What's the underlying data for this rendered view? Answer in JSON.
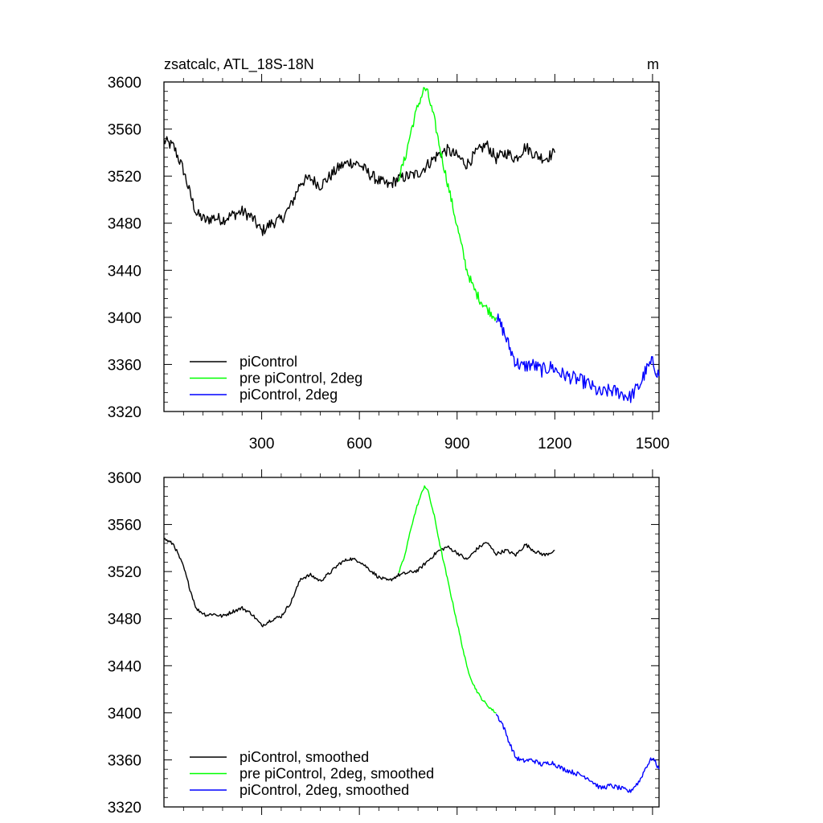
{
  "chart_data": [
    {
      "type": "line",
      "title": "zsatcalc, ATL_18S-18N",
      "units": "m",
      "xlim": [
        0,
        1520
      ],
      "ylim": [
        3320,
        3600
      ],
      "xticks": [
        300,
        600,
        900,
        1200,
        1500
      ],
      "x_tick_labels": [
        "300",
        "600",
        "900",
        "1200",
        "1500"
      ],
      "yticks": [
        3320,
        3360,
        3400,
        3440,
        3480,
        3520,
        3560,
        3600
      ],
      "y_tick_labels": [
        "3320",
        "3360",
        "3400",
        "3440",
        "3480",
        "3520",
        "3560",
        "3600"
      ],
      "legend_position": "bottom-left",
      "series": [
        {
          "name": "piControl",
          "color": "#000000",
          "x": [
            0,
            30,
            60,
            80,
            100,
            130,
            150,
            180,
            210,
            240,
            270,
            300,
            330,
            360,
            390,
            420,
            450,
            480,
            510,
            540,
            570,
            600,
            630,
            660,
            690,
            720,
            750,
            780,
            810,
            840,
            870,
            900,
            930,
            960,
            990,
            1020,
            1050,
            1080,
            1110,
            1140,
            1170,
            1200
          ],
          "y": [
            3550,
            3545,
            3525,
            3505,
            3488,
            3482,
            3485,
            3483,
            3487,
            3490,
            3485,
            3473,
            3480,
            3483,
            3495,
            3515,
            3518,
            3512,
            3520,
            3528,
            3532,
            3530,
            3522,
            3516,
            3512,
            3518,
            3520,
            3522,
            3530,
            3538,
            3542,
            3537,
            3530,
            3540,
            3547,
            3535,
            3540,
            3535,
            3545,
            3538,
            3535,
            3540
          ],
          "noise": 5
        },
        {
          "name": "pre piControl, 2deg",
          "color": "#00ff00",
          "x": [
            720,
            740,
            760,
            780,
            800,
            810,
            830,
            850,
            870,
            890,
            910,
            930,
            950,
            970,
            990,
            1010,
            1020
          ],
          "y": [
            3518,
            3535,
            3560,
            3580,
            3595,
            3590,
            3568,
            3540,
            3515,
            3490,
            3465,
            3440,
            3425,
            3415,
            3408,
            3402,
            3400
          ],
          "noise": 4
        },
        {
          "name": "piControl, 2deg",
          "color": "#0000ff",
          "x": [
            1020,
            1040,
            1060,
            1080,
            1100,
            1130,
            1160,
            1190,
            1220,
            1260,
            1300,
            1340,
            1370,
            1400,
            1430,
            1460,
            1480,
            1500,
            1520
          ],
          "y": [
            3400,
            3390,
            3375,
            3362,
            3358,
            3360,
            3355,
            3358,
            3352,
            3348,
            3344,
            3335,
            3338,
            3336,
            3332,
            3342,
            3355,
            3362,
            3350
          ],
          "noise": 6
        }
      ]
    },
    {
      "type": "line",
      "title": "",
      "xlim": [
        0,
        1520
      ],
      "ylim": [
        3320,
        3600
      ],
      "xticks": [
        300,
        600,
        900,
        1200,
        1500
      ],
      "yticks": [
        3320,
        3360,
        3400,
        3440,
        3480,
        3520,
        3560,
        3600
      ],
      "y_tick_labels": [
        "3320",
        "3360",
        "3400",
        "3440",
        "3480",
        "3520",
        "3560",
        "3600"
      ],
      "legend_position": "bottom-left",
      "series": [
        {
          "name": "piControl, smoothed",
          "color": "#000000",
          "x": [
            0,
            30,
            60,
            80,
            100,
            130,
            150,
            180,
            210,
            240,
            270,
            300,
            330,
            360,
            390,
            420,
            450,
            480,
            510,
            540,
            570,
            600,
            630,
            660,
            690,
            720,
            750,
            780,
            810,
            840,
            870,
            900,
            930,
            960,
            990,
            1020,
            1050,
            1080,
            1110,
            1140,
            1170,
            1200
          ],
          "y": [
            3548,
            3543,
            3524,
            3505,
            3488,
            3483,
            3484,
            3482,
            3486,
            3489,
            3484,
            3474,
            3479,
            3482,
            3494,
            3514,
            3517,
            3512,
            3519,
            3527,
            3531,
            3529,
            3522,
            3515,
            3512,
            3517,
            3519,
            3521,
            3529,
            3537,
            3541,
            3536,
            3530,
            3539,
            3545,
            3535,
            3538,
            3534,
            3543,
            3537,
            3534,
            3538
          ],
          "noise": 1.5
        },
        {
          "name": "pre piControl, 2deg, smoothed",
          "color": "#00ff00",
          "x": [
            720,
            740,
            760,
            780,
            800,
            810,
            830,
            850,
            870,
            890,
            910,
            930,
            950,
            970,
            990,
            1010,
            1020
          ],
          "y": [
            3518,
            3534,
            3559,
            3578,
            3593,
            3589,
            3567,
            3539,
            3514,
            3489,
            3464,
            3439,
            3424,
            3414,
            3407,
            3402,
            3400
          ],
          "noise": 1.2
        },
        {
          "name": "piControl, 2deg, smoothed",
          "color": "#0000ff",
          "x": [
            1020,
            1040,
            1060,
            1080,
            1100,
            1130,
            1160,
            1190,
            1220,
            1260,
            1300,
            1340,
            1370,
            1400,
            1430,
            1460,
            1480,
            1500,
            1520
          ],
          "y": [
            3399,
            3390,
            3375,
            3362,
            3359,
            3360,
            3356,
            3358,
            3353,
            3349,
            3345,
            3336,
            3338,
            3336,
            3333,
            3342,
            3354,
            3362,
            3352
          ],
          "noise": 2
        }
      ]
    }
  ]
}
